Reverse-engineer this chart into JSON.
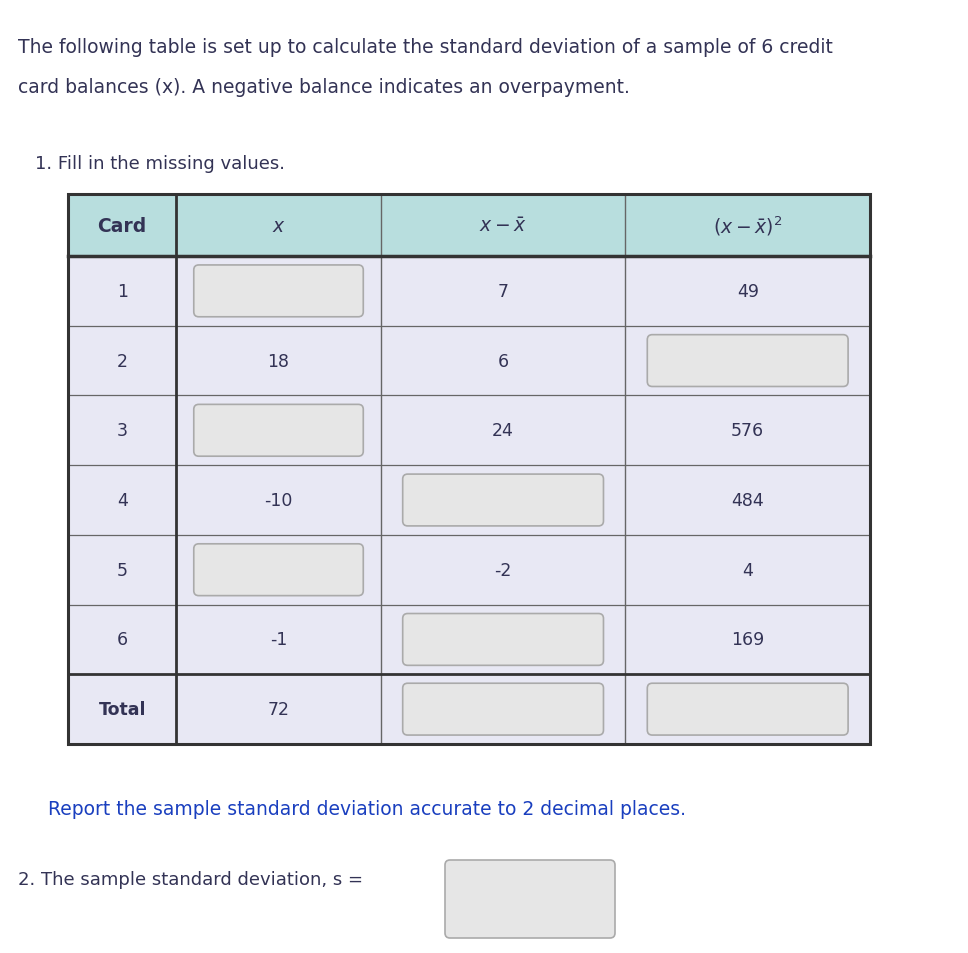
{
  "title_text_line1": "The following table is set up to calculate the standard deviation of a sample of 6 credit",
  "title_text_line2": "card balances (x). A negative balance indicates an overpayment.",
  "instruction1": "1. Fill in the missing values.",
  "instruction2_prefix": "2. The sample standard deviation, s =",
  "report_text": "Report the sample standard deviation accurate to 2 decimal places.",
  "header_bg": "#b8dede",
  "row_bg": "#e8e8f4",
  "input_box_bg": "#e6e6e6",
  "input_box_border": "#aaaaaa",
  "border_thin": "#666666",
  "border_thick": "#333333",
  "text_color": "#333355",
  "blue_text_color": "#1a3fbf",
  "rows": [
    {
      "card": "1",
      "x": "",
      "dev": "7",
      "dev2": "49",
      "x_blank": true,
      "dev_blank": false,
      "dev2_blank": false
    },
    {
      "card": "2",
      "x": "18",
      "dev": "6",
      "dev2": "",
      "x_blank": false,
      "dev_blank": false,
      "dev2_blank": true
    },
    {
      "card": "3",
      "x": "",
      "dev": "24",
      "dev2": "576",
      "x_blank": true,
      "dev_blank": false,
      "dev2_blank": false
    },
    {
      "card": "4",
      "x": "-10",
      "dev": "",
      "dev2": "484",
      "x_blank": false,
      "dev_blank": true,
      "dev2_blank": false
    },
    {
      "card": "5",
      "x": "",
      "dev": "-2",
      "dev2": "4",
      "x_blank": true,
      "dev_blank": false,
      "dev2_blank": false
    },
    {
      "card": "6",
      "x": "-1",
      "dev": "",
      "dev2": "169",
      "x_blank": false,
      "dev_blank": true,
      "dev2_blank": false
    },
    {
      "card": "Total",
      "x": "72",
      "dev": "",
      "dev2": "",
      "x_blank": false,
      "dev_blank": true,
      "dev2_blank": true
    }
  ]
}
